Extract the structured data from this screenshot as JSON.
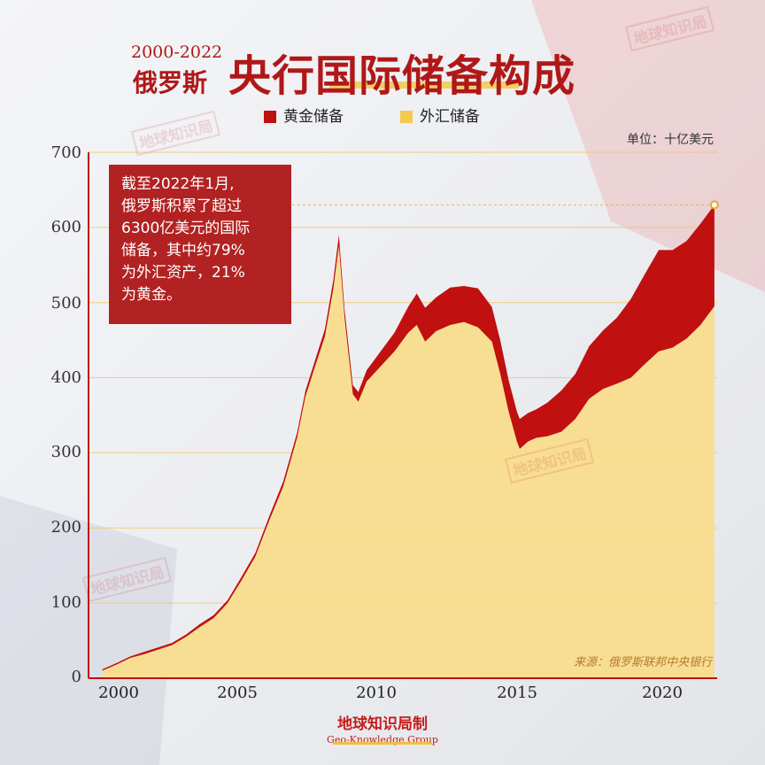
{
  "header": {
    "years": "2000-2022",
    "country": "俄罗斯",
    "title": "央行国际储备构成"
  },
  "legend": {
    "gold": "黄金储备",
    "fx": "外汇储备"
  },
  "unit": "单位：十亿美元",
  "annotation": [
    "截至2022年1月,",
    "俄罗斯积累了超过",
    "6300亿美元的国际",
    "储备，其中约79%",
    "为外汇资产，21%",
    "为黄金。"
  ],
  "source": "来源：俄罗斯联邦中央银行",
  "brand": {
    "cn": "地球知识局制",
    "en": "Geo-Knowledge Group"
  },
  "watermark": "地球知识局",
  "colors": {
    "gold": "#c0100f",
    "fx": "#f8dc8a",
    "accent": "#b01818"
  },
  "chart_data": {
    "type": "area",
    "stacked": true,
    "xlim": [
      1999.5,
      2022.1
    ],
    "ylim": [
      0,
      700
    ],
    "xticks": [
      "2000",
      "2005",
      "2010",
      "2015",
      "2020"
    ],
    "yticks": [
      "0",
      "100",
      "200",
      "300",
      "400",
      "500",
      "600",
      "700"
    ],
    "marker_value": 630,
    "series": [
      {
        "name": "外汇储备",
        "x": [
          2000,
          2000.5,
          2001,
          2001.5,
          2002,
          2002.5,
          2003,
          2003.5,
          2004,
          2004.5,
          2005,
          2005.5,
          2006,
          2006.5,
          2007,
          2007.3,
          2007.6,
          2008,
          2008.3,
          2008.5,
          2008.7,
          2009,
          2009.2,
          2009.5,
          2010,
          2010.5,
          2011,
          2011.3,
          2011.6,
          2012,
          2012.5,
          2013,
          2013.5,
          2014,
          2014.3,
          2014.6,
          2014.9,
          2015,
          2015.3,
          2015.6,
          2016,
          2016.5,
          2017,
          2017.5,
          2018,
          2018.5,
          2019,
          2019.5,
          2020,
          2020.5,
          2021,
          2021.5,
          2022
        ],
        "y": [
          10,
          18,
          27,
          32,
          38,
          44,
          55,
          68,
          80,
          100,
          130,
          162,
          210,
          255,
          320,
          375,
          410,
          455,
          518,
          575,
          480,
          378,
          368,
          395,
          415,
          435,
          460,
          470,
          448,
          462,
          470,
          474,
          467,
          448,
          405,
          355,
          315,
          305,
          315,
          320,
          322,
          328,
          345,
          372,
          385,
          392,
          400,
          418,
          435,
          440,
          452,
          470,
          495
        ]
      },
      {
        "name": "黄金储备",
        "x": [
          2000,
          2000.5,
          2001,
          2001.5,
          2002,
          2002.5,
          2003,
          2003.5,
          2004,
          2004.5,
          2005,
          2005.5,
          2006,
          2006.5,
          2007,
          2007.3,
          2007.6,
          2008,
          2008.3,
          2008.5,
          2008.7,
          2009,
          2009.2,
          2009.5,
          2010,
          2010.5,
          2011,
          2011.3,
          2011.6,
          2012,
          2012.5,
          2013,
          2013.5,
          2014,
          2014.3,
          2014.6,
          2014.9,
          2015,
          2015.3,
          2015.6,
          2016,
          2016.5,
          2017,
          2017.5,
          2018,
          2018.5,
          2019,
          2019.5,
          2020,
          2020.5,
          2021,
          2021.5,
          2022
        ],
        "y": [
          2,
          2,
          2,
          3,
          3,
          3,
          3,
          4,
          4,
          4,
          5,
          5,
          6,
          7,
          7,
          8,
          8,
          10,
          12,
          15,
          12,
          12,
          13,
          15,
          20,
          25,
          35,
          42,
          45,
          45,
          50,
          48,
          52,
          46,
          45,
          42,
          40,
          40,
          38,
          38,
          45,
          55,
          60,
          70,
          78,
          88,
          105,
          120,
          135,
          130,
          130,
          135,
          135
        ]
      }
    ]
  }
}
